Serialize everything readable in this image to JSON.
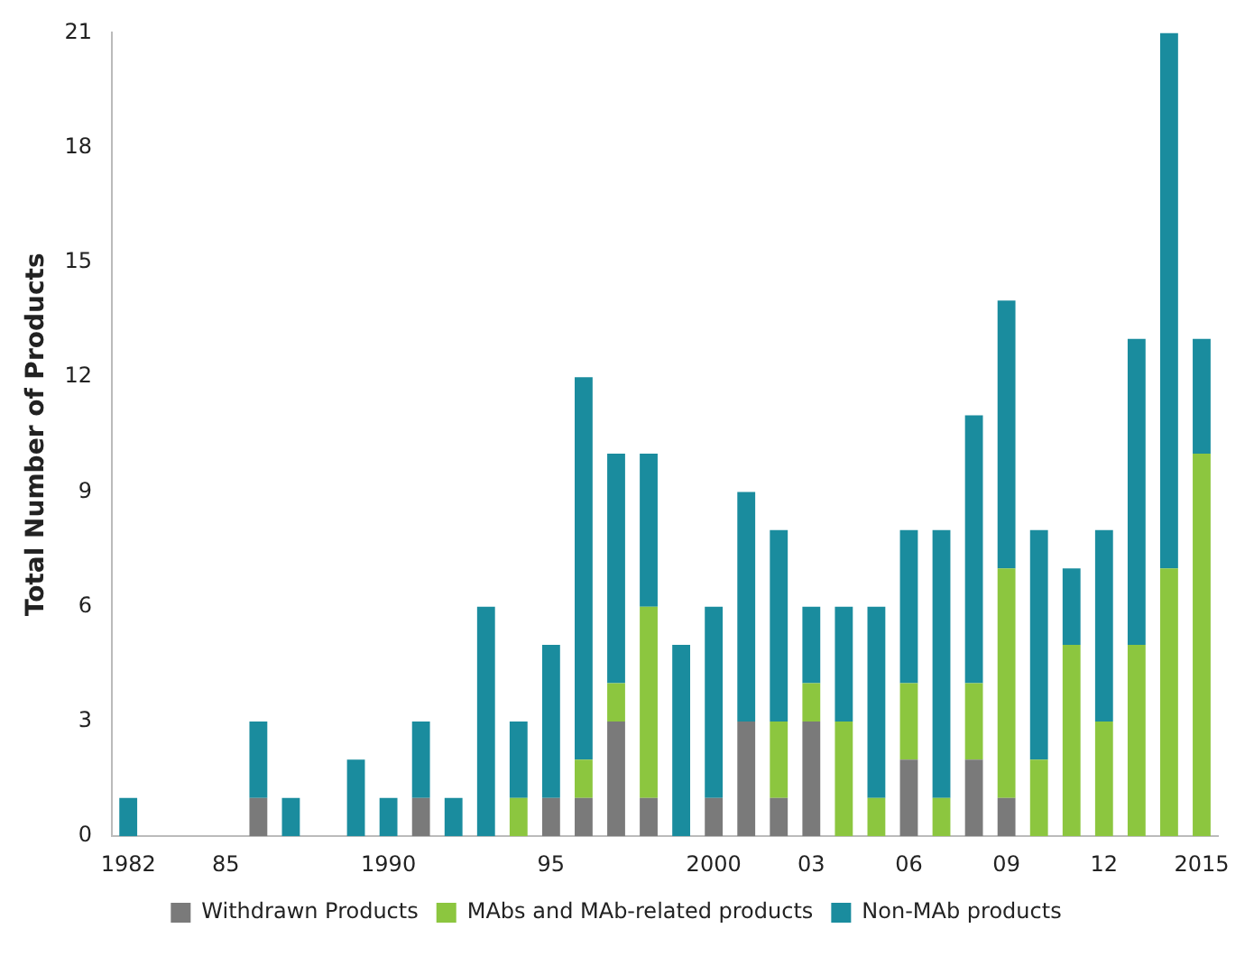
{
  "chart_data": {
    "type": "bar",
    "stacked": true,
    "ylabel": "Total Number of Products",
    "categories": [
      "1982",
      null,
      null,
      "85",
      null,
      null,
      null,
      null,
      "1990",
      null,
      null,
      null,
      null,
      "95",
      null,
      null,
      null,
      null,
      "2000",
      null,
      null,
      "03",
      null,
      null,
      "06",
      null,
      null,
      "09",
      null,
      null,
      "12",
      null,
      null,
      "2015"
    ],
    "series": [
      {
        "name": "Withdrawn Products",
        "color": "#7a7a7a",
        "values": [
          0,
          0,
          0,
          0,
          1,
          0,
          0,
          0,
          0,
          1,
          0,
          0,
          0,
          1,
          1,
          3,
          1,
          0,
          1,
          3,
          1,
          3,
          0,
          0,
          2,
          0,
          2,
          1,
          0,
          0,
          0,
          0,
          0,
          0
        ]
      },
      {
        "name": "MAbs and MAb-related products",
        "color": "#8cc63f",
        "values": [
          0,
          0,
          0,
          0,
          0,
          0,
          0,
          0,
          0,
          0,
          0,
          0,
          1,
          0,
          1,
          1,
          5,
          0,
          0,
          0,
          2,
          1,
          3,
          1,
          2,
          1,
          2,
          6,
          2,
          5,
          3,
          5,
          7,
          10
        ]
      },
      {
        "name": "Non-MAb products",
        "color": "#1a8c9e",
        "values": [
          1,
          0,
          0,
          0,
          2,
          1,
          0,
          2,
          1,
          2,
          1,
          6,
          2,
          4,
          10,
          6,
          4,
          5,
          5,
          6,
          5,
          2,
          3,
          5,
          4,
          7,
          7,
          7,
          6,
          2,
          5,
          8,
          14,
          3
        ]
      }
    ],
    "ylim": [
      0,
      21
    ],
    "yticks": [
      0,
      3,
      6,
      9,
      12,
      15,
      18,
      21
    ],
    "grid": false,
    "legend": "bottom"
  }
}
